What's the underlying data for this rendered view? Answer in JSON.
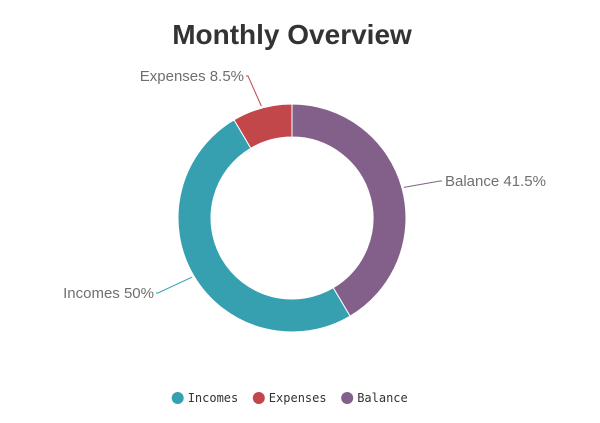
{
  "chart_data": {
    "type": "pie",
    "variant": "doughnut",
    "title": "Monthly Overview",
    "slices": [
      {
        "name": "Incomes",
        "value": 50,
        "label": "Incomes 50%",
        "color": "#36a0b0"
      },
      {
        "name": "Expenses",
        "value": 8.5,
        "label": "Expenses 8.5%",
        "color": "#c1474a"
      },
      {
        "name": "Balance",
        "value": 41.5,
        "label": "Balance 41.5%",
        "color": "#83608a"
      }
    ],
    "legend": {
      "placement": "bottom",
      "items": [
        "Incomes",
        "Expenses",
        "Balance"
      ]
    }
  }
}
